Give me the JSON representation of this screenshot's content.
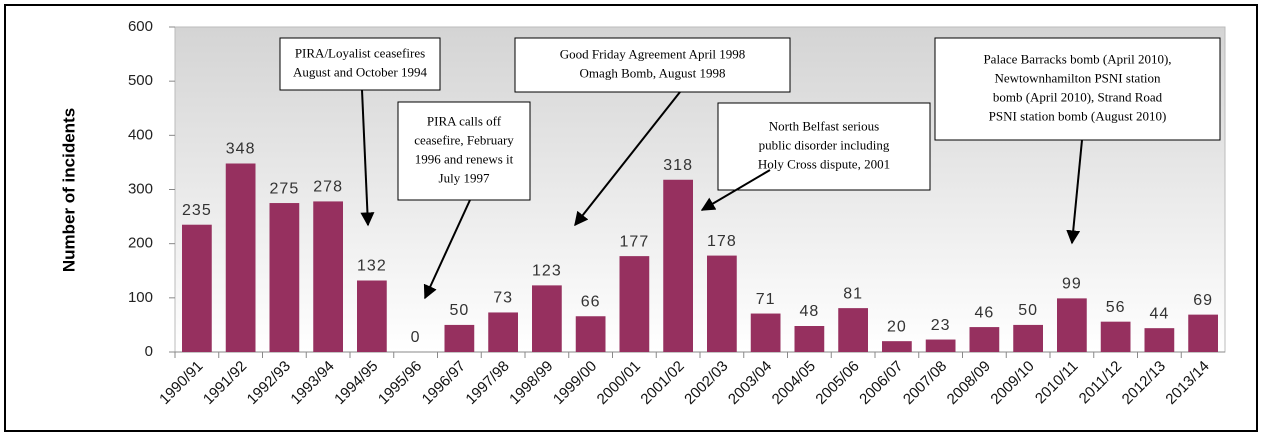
{
  "chart_data": {
    "type": "bar",
    "y_label": "Number of incidents",
    "categories": [
      "1990/91",
      "1991/92",
      "1992/93",
      "1993/94",
      "1994/95",
      "1995/96",
      "1996/97",
      "1997/98",
      "1998/99",
      "1999/00",
      "2000/01",
      "2001/02",
      "2002/03",
      "2003/04",
      "2004/05",
      "2005/06",
      "2006/07",
      "2007/08",
      "2008/09",
      "2009/10",
      "2010/11",
      "2011/12",
      "2012/13",
      "2013/14"
    ],
    "values": [
      235,
      348,
      275,
      278,
      132,
      0,
      50,
      73,
      123,
      66,
      177,
      318,
      178,
      71,
      48,
      81,
      20,
      23,
      46,
      50,
      99,
      56,
      44,
      69
    ],
    "color": "#96305f",
    "ylim": [
      0,
      600
    ],
    "yticks": [
      0,
      100,
      200,
      300,
      400,
      500,
      600
    ],
    "annotations": [
      {
        "lines": [
          "PIRA/Loyalist ceasefires",
          "August and October 1994"
        ]
      },
      {
        "lines": [
          "PIRA calls off",
          "ceasefire, February",
          "1996 and renews it",
          "July 1997"
        ]
      },
      {
        "lines": [
          "Good Friday Agreement April 1998",
          "Omagh Bomb, August 1998"
        ]
      },
      {
        "lines": [
          "North Belfast serious",
          "public disorder including",
          "Holy Cross dispute, 2001"
        ]
      },
      {
        "lines": [
          "Palace Barracks bomb (April 2010),",
          "Newtownhamilton PSNI station",
          "bomb (April 2010), Strand Road",
          "PSNI station bomb (August 2010)"
        ]
      }
    ]
  }
}
